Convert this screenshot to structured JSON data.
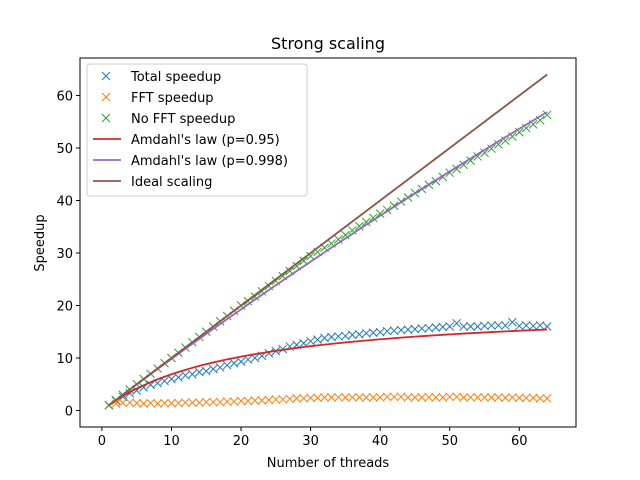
{
  "chart_data": {
    "type": "line",
    "title": "Strong scaling",
    "xlabel": "Number of threads",
    "ylabel": "Speedup",
    "xlim": [
      -3.15,
      68.15
    ],
    "ylim": [
      -3.15,
      67.15
    ],
    "xticks": [
      0,
      10,
      20,
      30,
      40,
      50,
      60
    ],
    "yticks": [
      0,
      10,
      20,
      30,
      40,
      50,
      60
    ],
    "grid": false,
    "legend_position": "top-left",
    "x": [
      1,
      2,
      3,
      4,
      5,
      6,
      7,
      8,
      9,
      10,
      11,
      12,
      13,
      14,
      15,
      16,
      17,
      18,
      19,
      20,
      21,
      22,
      23,
      24,
      25,
      26,
      27,
      28,
      29,
      30,
      31,
      32,
      33,
      34,
      35,
      36,
      37,
      38,
      39,
      40,
      41,
      42,
      43,
      44,
      45,
      46,
      47,
      48,
      49,
      50,
      51,
      52,
      53,
      54,
      55,
      56,
      57,
      58,
      59,
      60,
      61,
      62,
      63,
      64
    ],
    "series": [
      {
        "name": "Total speedup",
        "kind": "marker",
        "marker": "x",
        "color": "#1f77b4",
        "values": [
          1.0,
          1.9,
          2.6,
          3.3,
          3.8,
          4.4,
          4.9,
          5.2,
          5.6,
          6.0,
          6.3,
          6.7,
          6.9,
          7.3,
          7.5,
          7.9,
          8.2,
          8.6,
          9.0,
          9.3,
          9.7,
          10.0,
          10.4,
          10.9,
          11.3,
          11.7,
          12.2,
          12.5,
          12.8,
          13.2,
          13.5,
          13.8,
          14.0,
          14.1,
          14.2,
          14.4,
          14.5,
          14.7,
          14.8,
          14.9,
          15.1,
          15.2,
          15.3,
          15.4,
          15.5,
          15.6,
          15.7,
          15.8,
          15.9,
          16.0,
          16.6,
          16.0,
          16.0,
          16.0,
          16.1,
          16.2,
          16.2,
          16.2,
          16.8,
          16.1,
          16.2,
          16.1,
          16.2,
          16.0
        ]
      },
      {
        "name": "FFT speedup",
        "kind": "marker",
        "marker": "x",
        "color": "#ff7f0e",
        "values": [
          1.0,
          1.3,
          1.5,
          1.5,
          1.4,
          1.3,
          1.4,
          1.3,
          1.4,
          1.4,
          1.4,
          1.5,
          1.5,
          1.5,
          1.6,
          1.6,
          1.6,
          1.7,
          1.7,
          1.8,
          1.8,
          1.9,
          1.9,
          2.0,
          2.1,
          2.1,
          2.2,
          2.3,
          2.3,
          2.4,
          2.4,
          2.5,
          2.5,
          2.5,
          2.5,
          2.5,
          2.5,
          2.5,
          2.5,
          2.5,
          2.6,
          2.6,
          2.6,
          2.5,
          2.5,
          2.5,
          2.5,
          2.5,
          2.5,
          2.6,
          2.6,
          2.5,
          2.5,
          2.5,
          2.5,
          2.5,
          2.5,
          2.4,
          2.5,
          2.4,
          2.4,
          2.4,
          2.3,
          2.3
        ]
      },
      {
        "name": "No FFT speedup",
        "kind": "marker",
        "marker": "x",
        "color": "#2ca02c",
        "values": [
          1.0,
          2.0,
          3.0,
          4.0,
          5.0,
          6.0,
          7.0,
          8.0,
          9.0,
          10.0,
          11.0,
          12.0,
          13.0,
          14.0,
          15.0,
          16.0,
          17.0,
          18.0,
          19.0,
          20.0,
          20.8,
          21.7,
          22.7,
          23.7,
          24.7,
          25.6,
          26.6,
          27.5,
          28.5,
          29.4,
          30.2,
          31.0,
          31.8,
          32.6,
          33.4,
          34.3,
          35.1,
          35.9,
          36.7,
          37.5,
          38.2,
          39.0,
          39.8,
          40.6,
          41.4,
          42.2,
          43.0,
          43.7,
          44.5,
          45.3,
          46.0,
          46.8,
          47.6,
          48.4,
          49.1,
          49.9,
          50.7,
          51.4,
          52.2,
          53.0,
          53.8,
          54.5,
          55.3,
          56.3
        ]
      },
      {
        "name": "Amdahl's law (p=0.95)",
        "kind": "line",
        "color": "#d62728",
        "p": 0.95
      },
      {
        "name": "Amdahl's law (p=0.998)",
        "kind": "line",
        "color": "#9467bd",
        "p": 0.998
      },
      {
        "name": "Ideal scaling",
        "kind": "line",
        "color": "#8c564b",
        "ideal": true
      }
    ]
  }
}
